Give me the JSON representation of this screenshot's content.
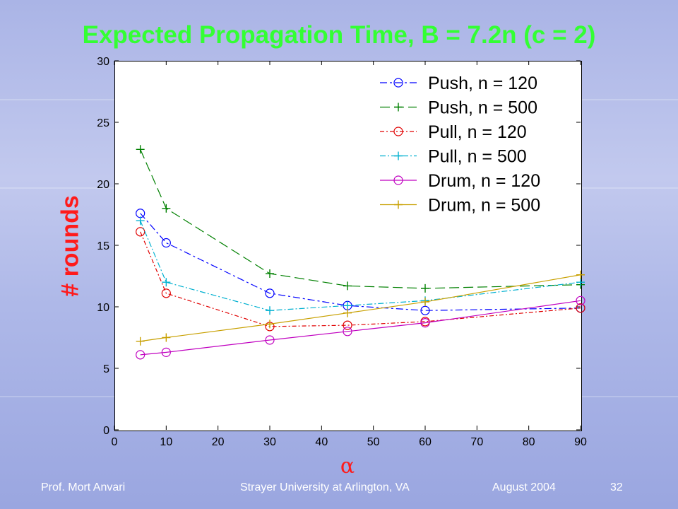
{
  "title": "Expected Propagation Time, B = 7.2n (c = 2)",
  "footer": {
    "author": "Prof. Mort Anvari",
    "venue": "Strayer University at Arlington, VA",
    "date": "August 2004",
    "page": "32"
  },
  "colors": {
    "title": "#33ff33",
    "axis_label": "#ff1a1a"
  },
  "chart_data": {
    "type": "line",
    "title": "Expected Propagation Time, B = 7.2n (c = 2)",
    "xlabel": "α",
    "ylabel": "# rounds",
    "xlim": [
      0,
      90
    ],
    "ylim": [
      0,
      30
    ],
    "xticks": [
      0,
      10,
      20,
      30,
      40,
      50,
      60,
      70,
      80,
      90
    ],
    "yticks": [
      0,
      5,
      10,
      15,
      20,
      25,
      30
    ],
    "grid": false,
    "legend_position": "top-right",
    "x": [
      5,
      10,
      30,
      45,
      60,
      90
    ],
    "series": [
      {
        "name": "Push, n = 120",
        "values": [
          17.6,
          15.2,
          11.1,
          10.1,
          9.7,
          9.9
        ],
        "color": "#0000ff",
        "marker": "circle",
        "dash": "10,4,3,4"
      },
      {
        "name": "Push, n = 500",
        "values": [
          22.8,
          18.0,
          12.7,
          11.7,
          11.5,
          11.8
        ],
        "color": "#008000",
        "marker": "plus",
        "dash": "14,6"
      },
      {
        "name": "Pull, n = 120",
        "values": [
          16.1,
          11.1,
          8.4,
          8.5,
          8.8,
          9.9
        ],
        "color": "#e00000",
        "marker": "circle",
        "dash": "6,3,2,3"
      },
      {
        "name": "Pull, n = 500",
        "values": [
          17.0,
          12.0,
          9.7,
          10.1,
          10.5,
          12.0
        ],
        "color": "#00b0d0",
        "marker": "plus",
        "dash": "8,3,2,3"
      },
      {
        "name": "Drum, n = 120",
        "values": [
          6.1,
          6.3,
          7.3,
          8.0,
          8.7,
          10.5
        ],
        "color": "#c000c0",
        "marker": "circle",
        "dash": ""
      },
      {
        "name": "Drum, n = 500",
        "values": [
          7.2,
          7.5,
          8.6,
          9.5,
          10.4,
          12.6
        ],
        "color": "#c8a000",
        "marker": "plus",
        "dash": ""
      }
    ]
  }
}
